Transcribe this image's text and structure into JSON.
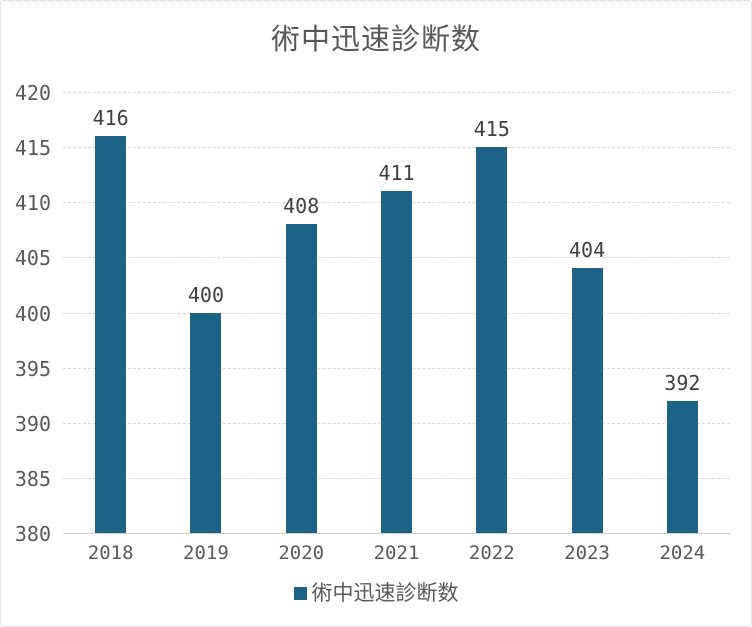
{
  "window": {
    "background_color": "#ffffff",
    "border_color": "#c9c9c9"
  },
  "chart_data": {
    "type": "bar",
    "title": "術中迅速診断数",
    "categories": [
      "2018",
      "2019",
      "2020",
      "2021",
      "2022",
      "2023",
      "2024"
    ],
    "series": [
      {
        "name": "術中迅速診断数",
        "values": [
          416,
          400,
          408,
          411,
          415,
          404,
          392
        ]
      }
    ],
    "data_labels": [
      "416",
      "400",
      "408",
      "411",
      "415",
      "404",
      "392"
    ],
    "xlabel": "",
    "ylabel": "",
    "ylim": [
      380,
      420
    ],
    "ytick_step": 5,
    "yticks": [
      380,
      385,
      390,
      395,
      400,
      405,
      410,
      415,
      420
    ],
    "grid": true,
    "legend_position": "bottom",
    "colors": {
      "bar": "#1d6385",
      "title_text": "#595959",
      "tick_text": "#595959",
      "data_label_text": "#404040",
      "gridline": "#d9d9d9",
      "axis_line": "#cfcfcf"
    }
  },
  "legend": {
    "label": "術中迅速診断数",
    "swatch_color": "#1d6385"
  }
}
